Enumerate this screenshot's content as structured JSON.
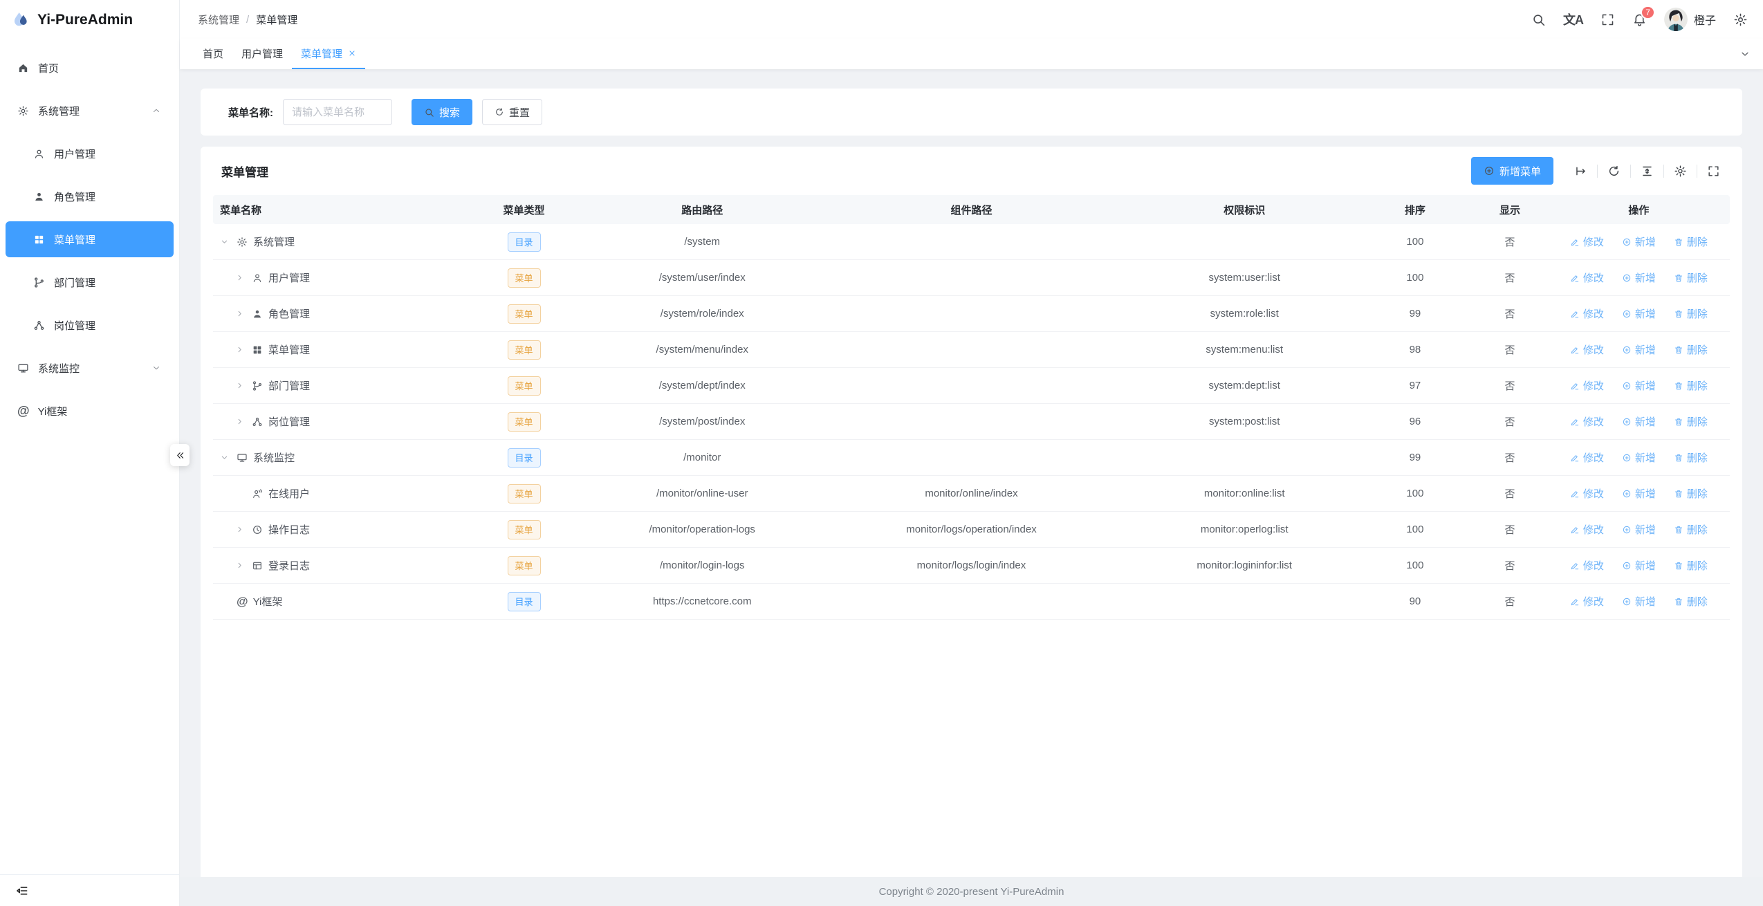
{
  "colors": {
    "accent": "#409eff",
    "warning": "#e6a23c",
    "badge": "#f56c6c"
  },
  "sidebar": {
    "logo_text": "Yi-PureAdmin",
    "items": [
      {
        "icon": "home",
        "label": "首页",
        "level": 0
      },
      {
        "icon": "gear",
        "label": "系统管理",
        "level": 0,
        "chevron": "up"
      },
      {
        "icon": "user",
        "label": "用户管理",
        "level": 1
      },
      {
        "icon": "role",
        "label": "角色管理",
        "level": 1
      },
      {
        "icon": "grid",
        "label": "菜单管理",
        "level": 1,
        "active": true
      },
      {
        "icon": "dept",
        "label": "部门管理",
        "level": 1
      },
      {
        "icon": "post",
        "label": "岗位管理",
        "level": 1
      },
      {
        "icon": "monitor",
        "label": "系统监控",
        "level": 0,
        "chevron": "down"
      },
      {
        "icon": "at",
        "label": "Yi框架",
        "level": 0
      }
    ]
  },
  "header": {
    "breadcrumb": {
      "parent": "系统管理",
      "separator": "/",
      "current": "菜单管理"
    },
    "action_icons": [
      "search",
      "translate",
      "fullscreen",
      "bell"
    ],
    "badge_count": "7",
    "user_name": "橙子"
  },
  "tabs": {
    "items": [
      {
        "label": "首页"
      },
      {
        "label": "用户管理"
      },
      {
        "label": "菜单管理",
        "active": true,
        "closable": true
      }
    ]
  },
  "search": {
    "label": "菜单名称:",
    "placeholder": "请输入菜单名称",
    "search_label": "搜索",
    "reset_label": "重置"
  },
  "panel": {
    "title": "菜单管理",
    "add_label": "新增菜单",
    "toolbar_icons": [
      "maps-to",
      "refresh",
      "density",
      "gear",
      "fullscreen"
    ]
  },
  "table": {
    "headers": [
      "菜单名称",
      "菜单类型",
      "路由路径",
      "组件路径",
      "权限标识",
      "排序",
      "显示",
      "操作"
    ],
    "action_items": [
      {
        "icon": "pencil",
        "label": "修改"
      },
      {
        "icon": "plus-circle",
        "label": "新增"
      },
      {
        "icon": "trash",
        "label": "删除"
      }
    ],
    "rows": [
      {
        "level": 0,
        "chevron": "down",
        "icon": "gear",
        "name": "系统管理",
        "type": "目录",
        "type_style": "dir",
        "route": "/system",
        "component": "",
        "permission": "",
        "sort": "100",
        "visible": "否"
      },
      {
        "level": 1,
        "chevron": "right",
        "icon": "user",
        "name": "用户管理",
        "type": "菜单",
        "type_style": "menu",
        "route": "/system/user/index",
        "component": "",
        "permission": "system:user:list",
        "sort": "100",
        "visible": "否"
      },
      {
        "level": 1,
        "chevron": "right",
        "icon": "role",
        "name": "角色管理",
        "type": "菜单",
        "type_style": "menu",
        "route": "/system/role/index",
        "component": "",
        "permission": "system:role:list",
        "sort": "99",
        "visible": "否"
      },
      {
        "level": 1,
        "chevron": "right",
        "icon": "grid",
        "name": "菜单管理",
        "type": "菜单",
        "type_style": "menu",
        "route": "/system/menu/index",
        "component": "",
        "permission": "system:menu:list",
        "sort": "98",
        "visible": "否"
      },
      {
        "level": 1,
        "chevron": "right",
        "icon": "dept",
        "name": "部门管理",
        "type": "菜单",
        "type_style": "menu",
        "route": "/system/dept/index",
        "component": "",
        "permission": "system:dept:list",
        "sort": "97",
        "visible": "否"
      },
      {
        "level": 1,
        "chevron": "right",
        "icon": "post",
        "name": "岗位管理",
        "type": "菜单",
        "type_style": "menu",
        "route": "/system/post/index",
        "component": "",
        "permission": "system:post:list",
        "sort": "96",
        "visible": "否"
      },
      {
        "level": 0,
        "chevron": "down",
        "icon": "monitor",
        "name": "系统监控",
        "type": "目录",
        "type_style": "dir",
        "route": "/monitor",
        "component": "",
        "permission": "",
        "sort": "99",
        "visible": "否"
      },
      {
        "level": 1,
        "chevron": null,
        "icon": "online-user",
        "name": "在线用户",
        "type": "菜单",
        "type_style": "menu",
        "route": "/monitor/online-user",
        "component": "monitor/online/index",
        "permission": "monitor:online:list",
        "sort": "100",
        "visible": "否"
      },
      {
        "level": 1,
        "chevron": "right",
        "icon": "clock",
        "name": "操作日志",
        "type": "菜单",
        "type_style": "menu",
        "route": "/monitor/operation-logs",
        "component": "monitor/logs/operation/index",
        "permission": "monitor:operlog:list",
        "sort": "100",
        "visible": "否"
      },
      {
        "level": 1,
        "chevron": "right",
        "icon": "window",
        "name": "登录日志",
        "type": "菜单",
        "type_style": "menu",
        "route": "/monitor/login-logs",
        "component": "monitor/logs/login/index",
        "permission": "monitor:logininfor:list",
        "sort": "100",
        "visible": "否"
      },
      {
        "level": 0,
        "chevron": null,
        "icon": "at",
        "name": "Yi框架",
        "type": "目录",
        "type_style": "dir",
        "route": "https://ccnetcore.com",
        "component": "",
        "permission": "",
        "sort": "90",
        "visible": "否"
      }
    ]
  },
  "footer": {
    "copyright": "Copyright © 2020-present Yi-PureAdmin"
  }
}
